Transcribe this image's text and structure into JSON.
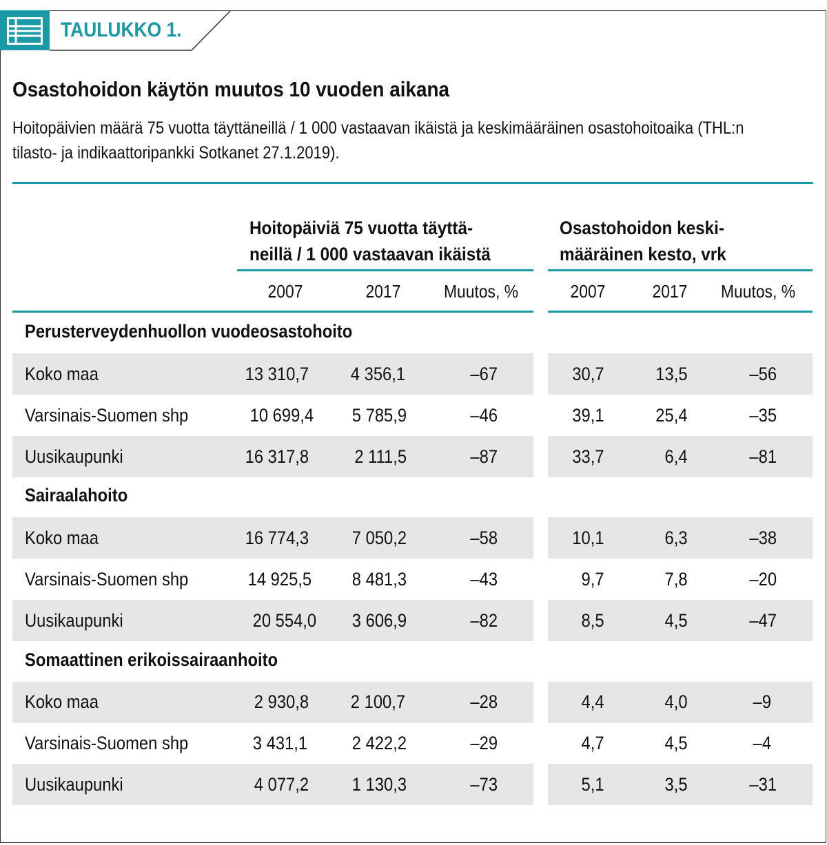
{
  "header": {
    "tab_label": "TAULUKKO 1.",
    "accent_color": "#1a9aa6",
    "badge_icon": "table-icon"
  },
  "title": "Osastohoidon käytön muutos 10 vuoden aikana",
  "subtitle": "Hoitopäivien määrä 75 vuotta täyttäneillä / 1 000 vastaavan ikäistä ja keskimääräinen osastohoitoaika (THL:n tilasto- ja indikaattoripankki Sotkanet 27.1.2019).",
  "groups": {
    "left_line1": "Hoitopäiviä 75 vuotta täyttä-",
    "left_line2": "neillä / 1 000 vastaavan ikäistä",
    "right_line1": "Osastohoidon keski-",
    "right_line2": "määräinen kesto, vrk"
  },
  "columns": [
    "2007",
    "2017",
    "Muutos, %",
    "2007",
    "2017",
    "Muutos, %"
  ],
  "sections": [
    {
      "label": "Perusterveydenhuollon vuodeosastohoito",
      "rows": [
        {
          "name": "Koko maa",
          "v": [
            "13 310,7",
            "4 356,1",
            "–67",
            "30,7",
            "13,5",
            "–56"
          ]
        },
        {
          "name": "Varsinais-Suomen shp",
          "v": [
            "10 699,4",
            "5 785,9",
            "–46",
            "39,1",
            "25,4",
            "–35"
          ]
        },
        {
          "name": "Uusikaupunki",
          "v": [
            "16 317,8",
            "2 111,5",
            "–87",
            "33,7",
            "6,4",
            "–81"
          ]
        }
      ]
    },
    {
      "label": "Sairaalahoito",
      "rows": [
        {
          "name": "Koko maa",
          "v": [
            "16 774,3",
            "7 050,2",
            "–58",
            "10,1",
            "6,3",
            "–38"
          ]
        },
        {
          "name": "Varsinais-Suomen shp",
          "v": [
            "14 925,5",
            "8 481,3",
            "–43",
            "9,7",
            "7,8",
            "–20"
          ]
        },
        {
          "name": "Uusikaupunki",
          "v": [
            "20 554,0",
            "3 606,9",
            "–82",
            "8,5",
            "4,5",
            "–47"
          ]
        }
      ]
    },
    {
      "label": "Somaattinen erikoissairaanhoito",
      "rows": [
        {
          "name": "Koko maa",
          "v": [
            "2 930,8",
            "2 100,7",
            "–28",
            "4,4",
            "4,0",
            "–9"
          ]
        },
        {
          "name": "Varsinais-Suomen shp",
          "v": [
            "3 431,1",
            "2 422,2",
            "–29",
            "4,7",
            "4,5",
            "–4"
          ]
        },
        {
          "name": "Uusikaupunki",
          "v": [
            "4 077,2",
            "1 130,3",
            "–73",
            "5,1",
            "3,5",
            "–31"
          ]
        }
      ]
    }
  ]
}
